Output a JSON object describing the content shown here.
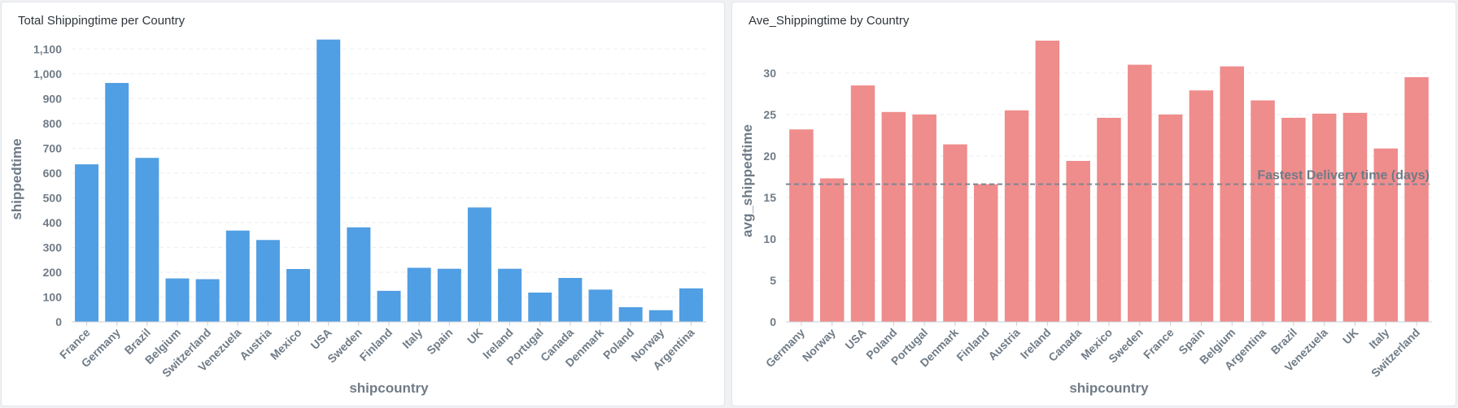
{
  "chart_data": [
    {
      "type": "bar",
      "title": "Total Shippingtime per Country",
      "xlabel": "shipcountry",
      "ylabel": "shippedtime",
      "ylim": [
        0,
        1150
      ],
      "yticks": [
        0,
        100,
        200,
        300,
        400,
        500,
        600,
        700,
        800,
        900,
        1000,
        1100
      ],
      "ytick_labels": [
        "0",
        "100",
        "200",
        "300",
        "400",
        "500",
        "600",
        "700",
        "800",
        "900",
        "1,000",
        "1,100"
      ],
      "grid": true,
      "color": "#509ee3",
      "categories": [
        "France",
        "Germany",
        "Brazil",
        "Belgium",
        "Switzerland",
        "Venezuela",
        "Austria",
        "Mexico",
        "USA",
        "Sweden",
        "Finland",
        "Italy",
        "Spain",
        "UK",
        "Ireland",
        "Portugal",
        "Canada",
        "Denmark",
        "Poland",
        "Norway",
        "Argentina"
      ],
      "values": [
        635,
        963,
        661,
        175,
        172,
        368,
        330,
        213,
        1138,
        381,
        125,
        218,
        214,
        461,
        214,
        118,
        177,
        130,
        59,
        47,
        135
      ]
    },
    {
      "type": "bar",
      "title": "Ave_Shippingtime by Country",
      "xlabel": "shipcountry",
      "ylabel": "avg_shippedtime",
      "ylim": [
        0,
        34
      ],
      "yticks": [
        0,
        5,
        10,
        15,
        20,
        25,
        30
      ],
      "ytick_labels": [
        "0",
        "5",
        "10",
        "15",
        "20",
        "25",
        "30"
      ],
      "grid": true,
      "color": "#ef8c8c",
      "goal": {
        "value": 16.6,
        "label": "Fastest Delivery time (days)",
        "color": "#7b8794"
      },
      "categories": [
        "Germany",
        "Norway",
        "USA",
        "Poland",
        "Portugal",
        "Denmark",
        "Finland",
        "Austria",
        "Ireland",
        "Canada",
        "Mexico",
        "Sweden",
        "France",
        "Spain",
        "Belgium",
        "Argentina",
        "Brazil",
        "Venezuela",
        "UK",
        "Italy",
        "Switzerland"
      ],
      "values": [
        23.2,
        17.3,
        28.5,
        25.3,
        25.0,
        21.4,
        16.6,
        25.5,
        33.9,
        19.4,
        24.6,
        31.0,
        25.0,
        27.9,
        30.8,
        26.7,
        24.6,
        25.1,
        25.2,
        20.9,
        29.5
      ]
    }
  ]
}
